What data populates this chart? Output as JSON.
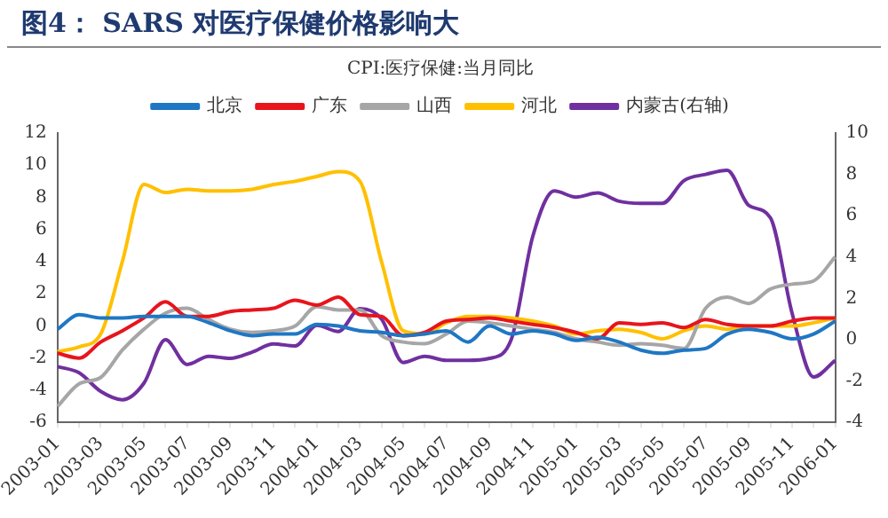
{
  "chart_data": {
    "type": "line",
    "title": "图4： SARS 对医疗保健价格影响大",
    "subtitle": "CPI:医疗保健:当月同比",
    "categories": [
      "2003-01",
      null,
      "2003-03",
      null,
      "2003-05",
      null,
      "2003-07",
      null,
      "2003-09",
      null,
      "2003-11",
      null,
      "2004-01",
      null,
      "2004-03",
      null,
      "2004-05",
      null,
      "2004-07",
      null,
      "2004-09",
      null,
      "2004-11",
      null,
      "2005-01",
      null,
      "2005-03",
      null,
      "2005-05",
      null,
      "2005-07",
      null,
      "2005-09",
      null,
      "2005-11",
      null,
      "2006-01"
    ],
    "series": [
      {
        "name": "北京",
        "color": "#1f77c4",
        "values": [
          -0.2,
          0.7,
          0.5,
          0.5,
          0.6,
          0.6,
          0.6,
          0.2,
          -0.3,
          -0.6,
          -0.5,
          -0.5,
          0.1,
          0,
          -0.3,
          -0.4,
          -0.6,
          -0.5,
          -0.3,
          -1.0,
          0,
          -0.5,
          -0.3,
          -0.5,
          -0.9,
          -0.7,
          -1.0,
          -1.5,
          -1.7,
          -1.5,
          -1.4,
          -0.5,
          -0.2,
          -0.4,
          -0.8,
          -0.5,
          0.3
        ]
      },
      {
        "name": "广东",
        "color": "#e8141c",
        "values": [
          -1.7,
          -2.0,
          -1.0,
          -0.3,
          0.5,
          1.5,
          0.6,
          0.6,
          0.9,
          1.0,
          1.1,
          1.6,
          1.3,
          1.8,
          0.7,
          0.6,
          -0.6,
          -0.4,
          0.3,
          0.4,
          0.5,
          0.3,
          0.1,
          -0.1,
          -0.4,
          -0.8,
          0.2,
          0.1,
          0.2,
          -0.1,
          0.4,
          0.1,
          0,
          0,
          0.3,
          0.5,
          0.5
        ]
      },
      {
        "name": "山西",
        "color": "#a6a6a6",
        "values": [
          -5.0,
          -3.6,
          -3.2,
          -1.5,
          -0.2,
          0.8,
          1.1,
          0.4,
          -0.2,
          -0.4,
          -0.3,
          0,
          1.2,
          1.0,
          1.0,
          -0.6,
          -1.0,
          -1.1,
          -0.5,
          0.3,
          0.2,
          0,
          -0.2,
          -0.4,
          -0.8,
          -1.0,
          -1.2,
          -1.1,
          -1.2,
          -1.4,
          1.1,
          1.8,
          1.4,
          2.3,
          2.6,
          2.8,
          4.3
        ]
      },
      {
        "name": "河北",
        "color": "#ffc000",
        "values": [
          -1.6,
          -1.3,
          -0.5,
          4.0,
          8.8,
          8.3,
          8.5,
          8.4,
          8.4,
          8.5,
          8.8,
          9.0,
          9.3,
          9.6,
          9.0,
          4.0,
          -0.3,
          -0.5,
          0.2,
          0.6,
          0.6,
          0.5,
          0.3,
          0,
          -0.5,
          -0.3,
          -0.2,
          -0.4,
          -0.8,
          -0.3,
          0,
          -0.2,
          0,
          0,
          0,
          0.2,
          0.5
        ]
      },
      {
        "name": "内蒙古(右轴)",
        "color": "#7030a0",
        "axis": "y2",
        "values": [
          -1.3,
          -1.6,
          -2.5,
          -2.9,
          -2.1,
          0,
          -1.2,
          -0.8,
          -0.9,
          -0.6,
          -0.2,
          -0.3,
          0.7,
          0.4,
          1.5,
          1.0,
          -1.1,
          -0.8,
          -1.0,
          -1.0,
          -0.9,
          0,
          5.0,
          7.2,
          6.9,
          7.1,
          6.7,
          6.6,
          6.6,
          7.7,
          8.0,
          8.2,
          6.5,
          5.9,
          1.3,
          -1.8,
          -1.0
        ]
      }
    ],
    "ylim": [
      -6,
      12
    ],
    "yticks": [
      -6,
      -4,
      -2,
      0,
      2,
      4,
      6,
      8,
      10,
      12
    ],
    "y2lim": [
      -4,
      10
    ],
    "y2ticks": [
      -4,
      -2,
      0,
      2,
      4,
      6,
      8,
      10
    ],
    "legend": "top",
    "grid": false,
    "marker": "none",
    "line_style": "solid"
  }
}
